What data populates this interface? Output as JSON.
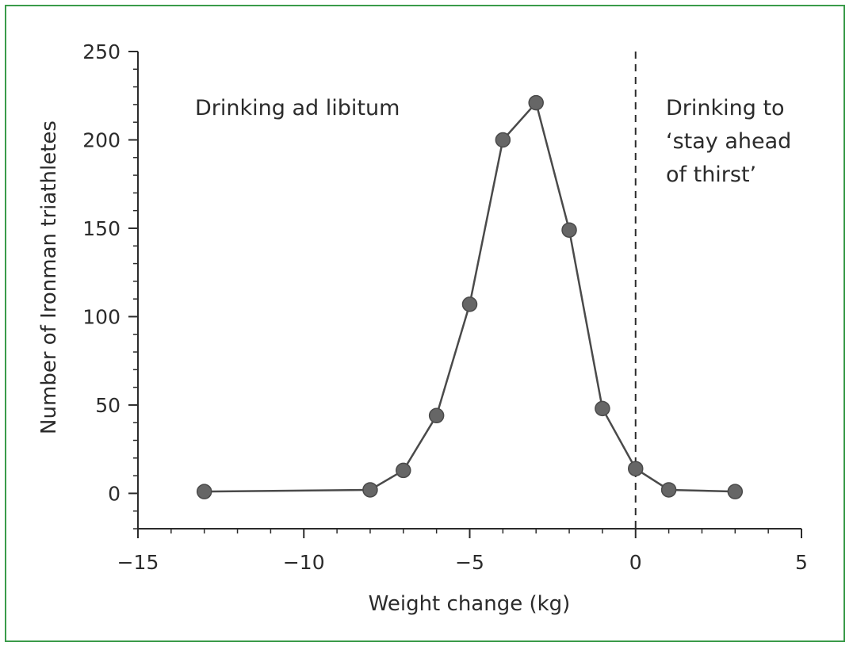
{
  "chart_data": {
    "type": "line",
    "title": "",
    "xlabel": "Weight change (kg)",
    "ylabel": "Number of Ironman triathletes",
    "xlim": [
      -15,
      5
    ],
    "ylim": [
      -20,
      250
    ],
    "x_ticks": [
      -15,
      -10,
      -5,
      0,
      5
    ],
    "x_tick_labels": [
      "−15",
      "−10",
      "−5",
      "0",
      "5"
    ],
    "y_ticks": [
      0,
      50,
      100,
      150,
      200,
      250
    ],
    "y_tick_labels": [
      "0",
      "50",
      "100",
      "150",
      "200",
      "250"
    ],
    "grid": false,
    "series": [
      {
        "x": [
          -13,
          -8,
          -7,
          -6,
          -5,
          -4,
          -3,
          -2,
          -1,
          0,
          1,
          3
        ],
        "y": [
          1,
          2,
          13,
          44,
          107,
          200,
          221,
          149,
          48,
          14,
          2,
          1
        ]
      }
    ],
    "reference_line": {
      "x": 0,
      "style": "dashed"
    },
    "annotations": [
      {
        "lines": [
          "Drinking ad libitum"
        ]
      },
      {
        "lines": [
          "Drinking to",
          "‘stay ahead",
          "of thirst’"
        ]
      }
    ],
    "colors": {
      "line": "#4a4a4a",
      "marker": "#666666",
      "axis": "#2b2b2b",
      "border": "#3a9b4a"
    }
  }
}
